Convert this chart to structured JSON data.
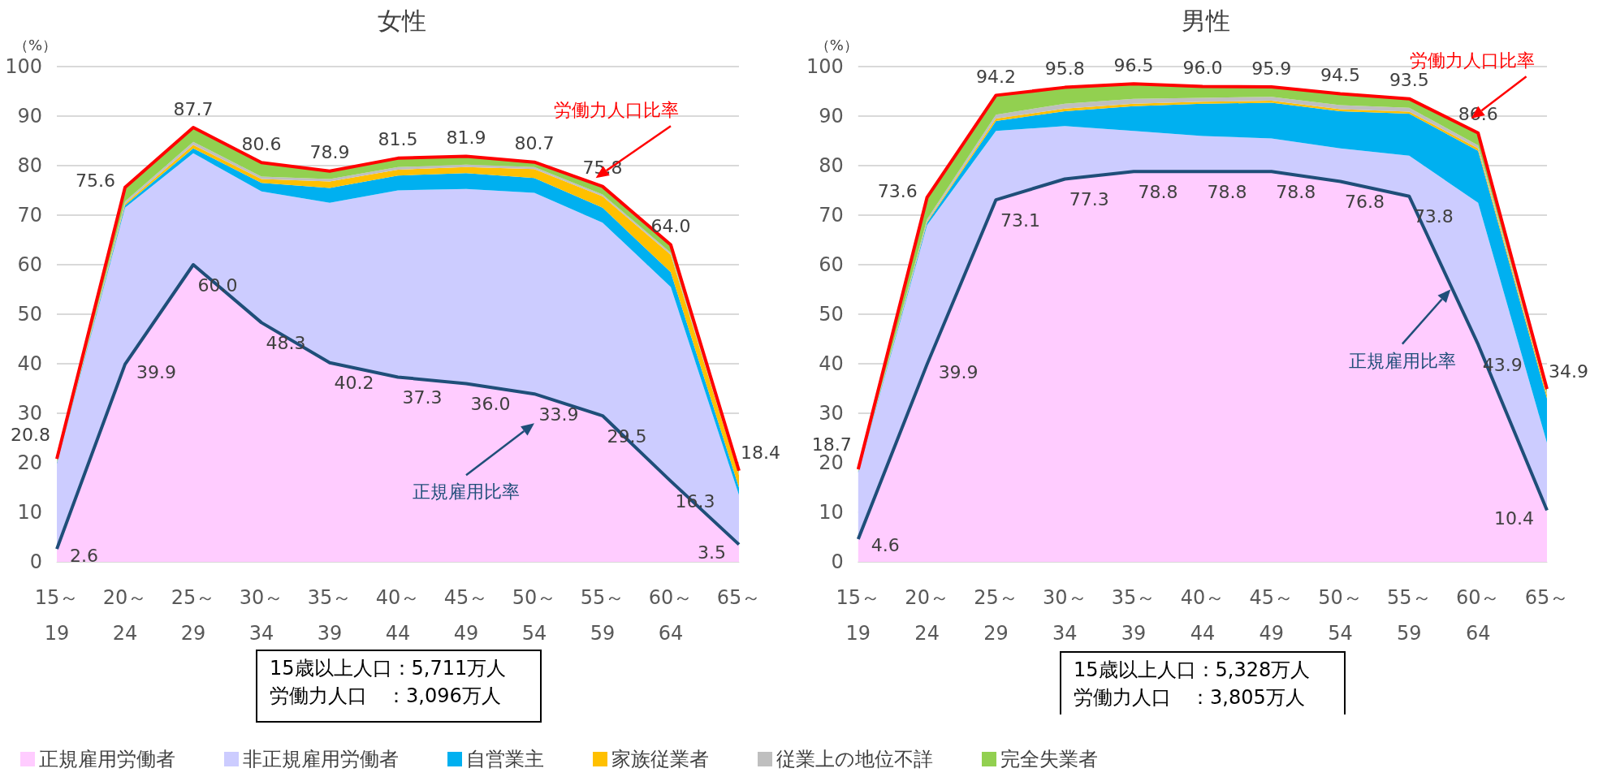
{
  "chart_data": [
    {
      "type": "area",
      "title": "女性",
      "ylabel": "（%）",
      "stacked": true,
      "categories": [
        "15～\n19",
        "20～\n24",
        "25～\n29",
        "30～\n34",
        "35～\n39",
        "40～\n44",
        "45～\n49",
        "50～\n54",
        "55～\n59",
        "60～\n64",
        "65～"
      ],
      "ylim": [
        0,
        100
      ],
      "yticks": [
        0,
        10,
        20,
        30,
        40,
        50,
        60,
        70,
        80,
        90,
        100
      ],
      "grid": "y",
      "legend": "bottom",
      "annotations": [
        "15歳以上人口：5,711万人",
        "労働力人口　：3,096万人"
      ],
      "series": [
        {
          "name": "正規雇用労働者",
          "color": "#ffccff",
          "values": [
            2.6,
            39.9,
            60.0,
            48.3,
            40.2,
            37.3,
            36.0,
            33.9,
            29.5,
            16.3,
            3.5
          ]
        },
        {
          "name": "非正規雇用労働者",
          "color": "#ccccff",
          "values": [
            17.2,
            31.6,
            22.5,
            26.5,
            32.3,
            37.7,
            39.3,
            40.6,
            39.0,
            39.2,
            10.0
          ]
        },
        {
          "name": "自営業主",
          "color": "#00b0f0",
          "values": [
            0.2,
            0.5,
            1.0,
            1.7,
            3.0,
            3.0,
            3.2,
            3.0,
            3.0,
            3.0,
            1.5
          ]
        },
        {
          "name": "家族従業者",
          "color": "#ffc000",
          "values": [
            0.1,
            0.3,
            0.7,
            0.8,
            1.3,
            1.2,
            1.2,
            1.8,
            2.3,
            3.5,
            2.5
          ]
        },
        {
          "name": "従業上の地位不詳",
          "color": "#bfbfbf",
          "values": [
            0.2,
            0.5,
            0.6,
            0.5,
            0.5,
            0.5,
            0.5,
            0.4,
            0.4,
            0.4,
            0.3
          ]
        },
        {
          "name": "完全失業者",
          "color": "#92d050",
          "values": [
            0.5,
            2.8,
            2.9,
            2.8,
            1.6,
            1.8,
            1.7,
            1.0,
            1.6,
            1.6,
            0.6
          ]
        },
        {
          "name": "労働力人口比率",
          "type": "line",
          "color": "#ff0000",
          "values": [
            20.8,
            75.6,
            87.7,
            80.6,
            78.9,
            81.5,
            81.9,
            80.7,
            75.8,
            64.0,
            18.4
          ],
          "value_labels": [
            "20.8",
            "75.6",
            "87.7",
            "80.6",
            "78.9",
            "81.5",
            "81.9",
            "80.7",
            "75.8",
            "64.0",
            "18.4"
          ]
        },
        {
          "name": "正規雇用比率",
          "type": "line",
          "color": "#1f4e79",
          "values": [
            2.6,
            39.9,
            60.0,
            48.3,
            40.2,
            37.3,
            36.0,
            33.9,
            29.5,
            16.3,
            3.5
          ],
          "value_labels": [
            "2.6",
            "39.9",
            "60.0",
            "48.3",
            "40.2",
            "37.3",
            "36.0",
            "33.9",
            "29.5",
            "16.3",
            "3.5"
          ]
        }
      ]
    },
    {
      "type": "area",
      "title": "男性",
      "ylabel": "（%）",
      "stacked": true,
      "categories": [
        "15～\n19",
        "20～\n24",
        "25～\n29",
        "30～\n34",
        "35～\n39",
        "40～\n44",
        "45～\n49",
        "50～\n54",
        "55～\n59",
        "60～\n64",
        "65～"
      ],
      "ylim": [
        0,
        100
      ],
      "yticks": [
        0,
        10,
        20,
        30,
        40,
        50,
        60,
        70,
        80,
        90,
        100
      ],
      "grid": "y",
      "legend": false,
      "annotations": [
        "15歳以上人口：5,328万人",
        "労働力人口　：3,805万人"
      ],
      "series": [
        {
          "color": "#ffccff",
          "values": [
            4.6,
            39.9,
            73.1,
            77.3,
            78.8,
            78.8,
            78.8,
            76.8,
            73.8,
            43.9,
            10.4
          ]
        },
        {
          "color": "#ccccff",
          "values": [
            13.4,
            28.1,
            13.9,
            10.7,
            8.2,
            7.2,
            6.7,
            6.7,
            8.2,
            28.6,
            13.6
          ]
        },
        {
          "color": "#00b0f0",
          "values": [
            0.2,
            0.5,
            2.0,
            3.0,
            5.0,
            6.5,
            7.2,
            7.5,
            8.5,
            10.5,
            9.0
          ]
        },
        {
          "color": "#ffc000",
          "values": [
            0.1,
            0.2,
            0.5,
            0.5,
            0.5,
            0.4,
            0.4,
            0.4,
            0.4,
            0.5,
            0.7
          ]
        },
        {
          "color": "#bfbfbf",
          "values": [
            0.1,
            0.5,
            0.8,
            1.0,
            1.0,
            0.8,
            0.8,
            0.8,
            0.8,
            0.6,
            0.4
          ]
        },
        {
          "color": "#92d050",
          "values": [
            0.3,
            4.4,
            3.9,
            3.3,
            3.0,
            2.3,
            2.0,
            2.3,
            1.8,
            2.5,
            0.8
          ]
        },
        {
          "name": "労働力人口比率",
          "type": "line",
          "color": "#ff0000",
          "values": [
            18.7,
            73.6,
            94.2,
            95.8,
            96.5,
            96.0,
            95.9,
            94.5,
            93.5,
            86.6,
            34.9
          ],
          "value_labels": [
            "18.7",
            "73.6",
            "94.2",
            "95.8",
            "96.5",
            "96.0",
            "95.9",
            "94.5",
            "93.5",
            "86.6",
            "34.9"
          ]
        },
        {
          "name": "正規雇用比率",
          "type": "line",
          "color": "#1f4e79",
          "values": [
            4.6,
            39.9,
            73.1,
            77.3,
            78.8,
            78.8,
            78.8,
            76.8,
            73.8,
            43.9,
            10.4
          ],
          "value_labels": [
            "4.6",
            "39.9",
            "73.1",
            "77.3",
            "78.8",
            "78.8",
            "78.8",
            "76.8",
            "73.8",
            "43.9",
            "10.4"
          ]
        }
      ]
    }
  ]
}
